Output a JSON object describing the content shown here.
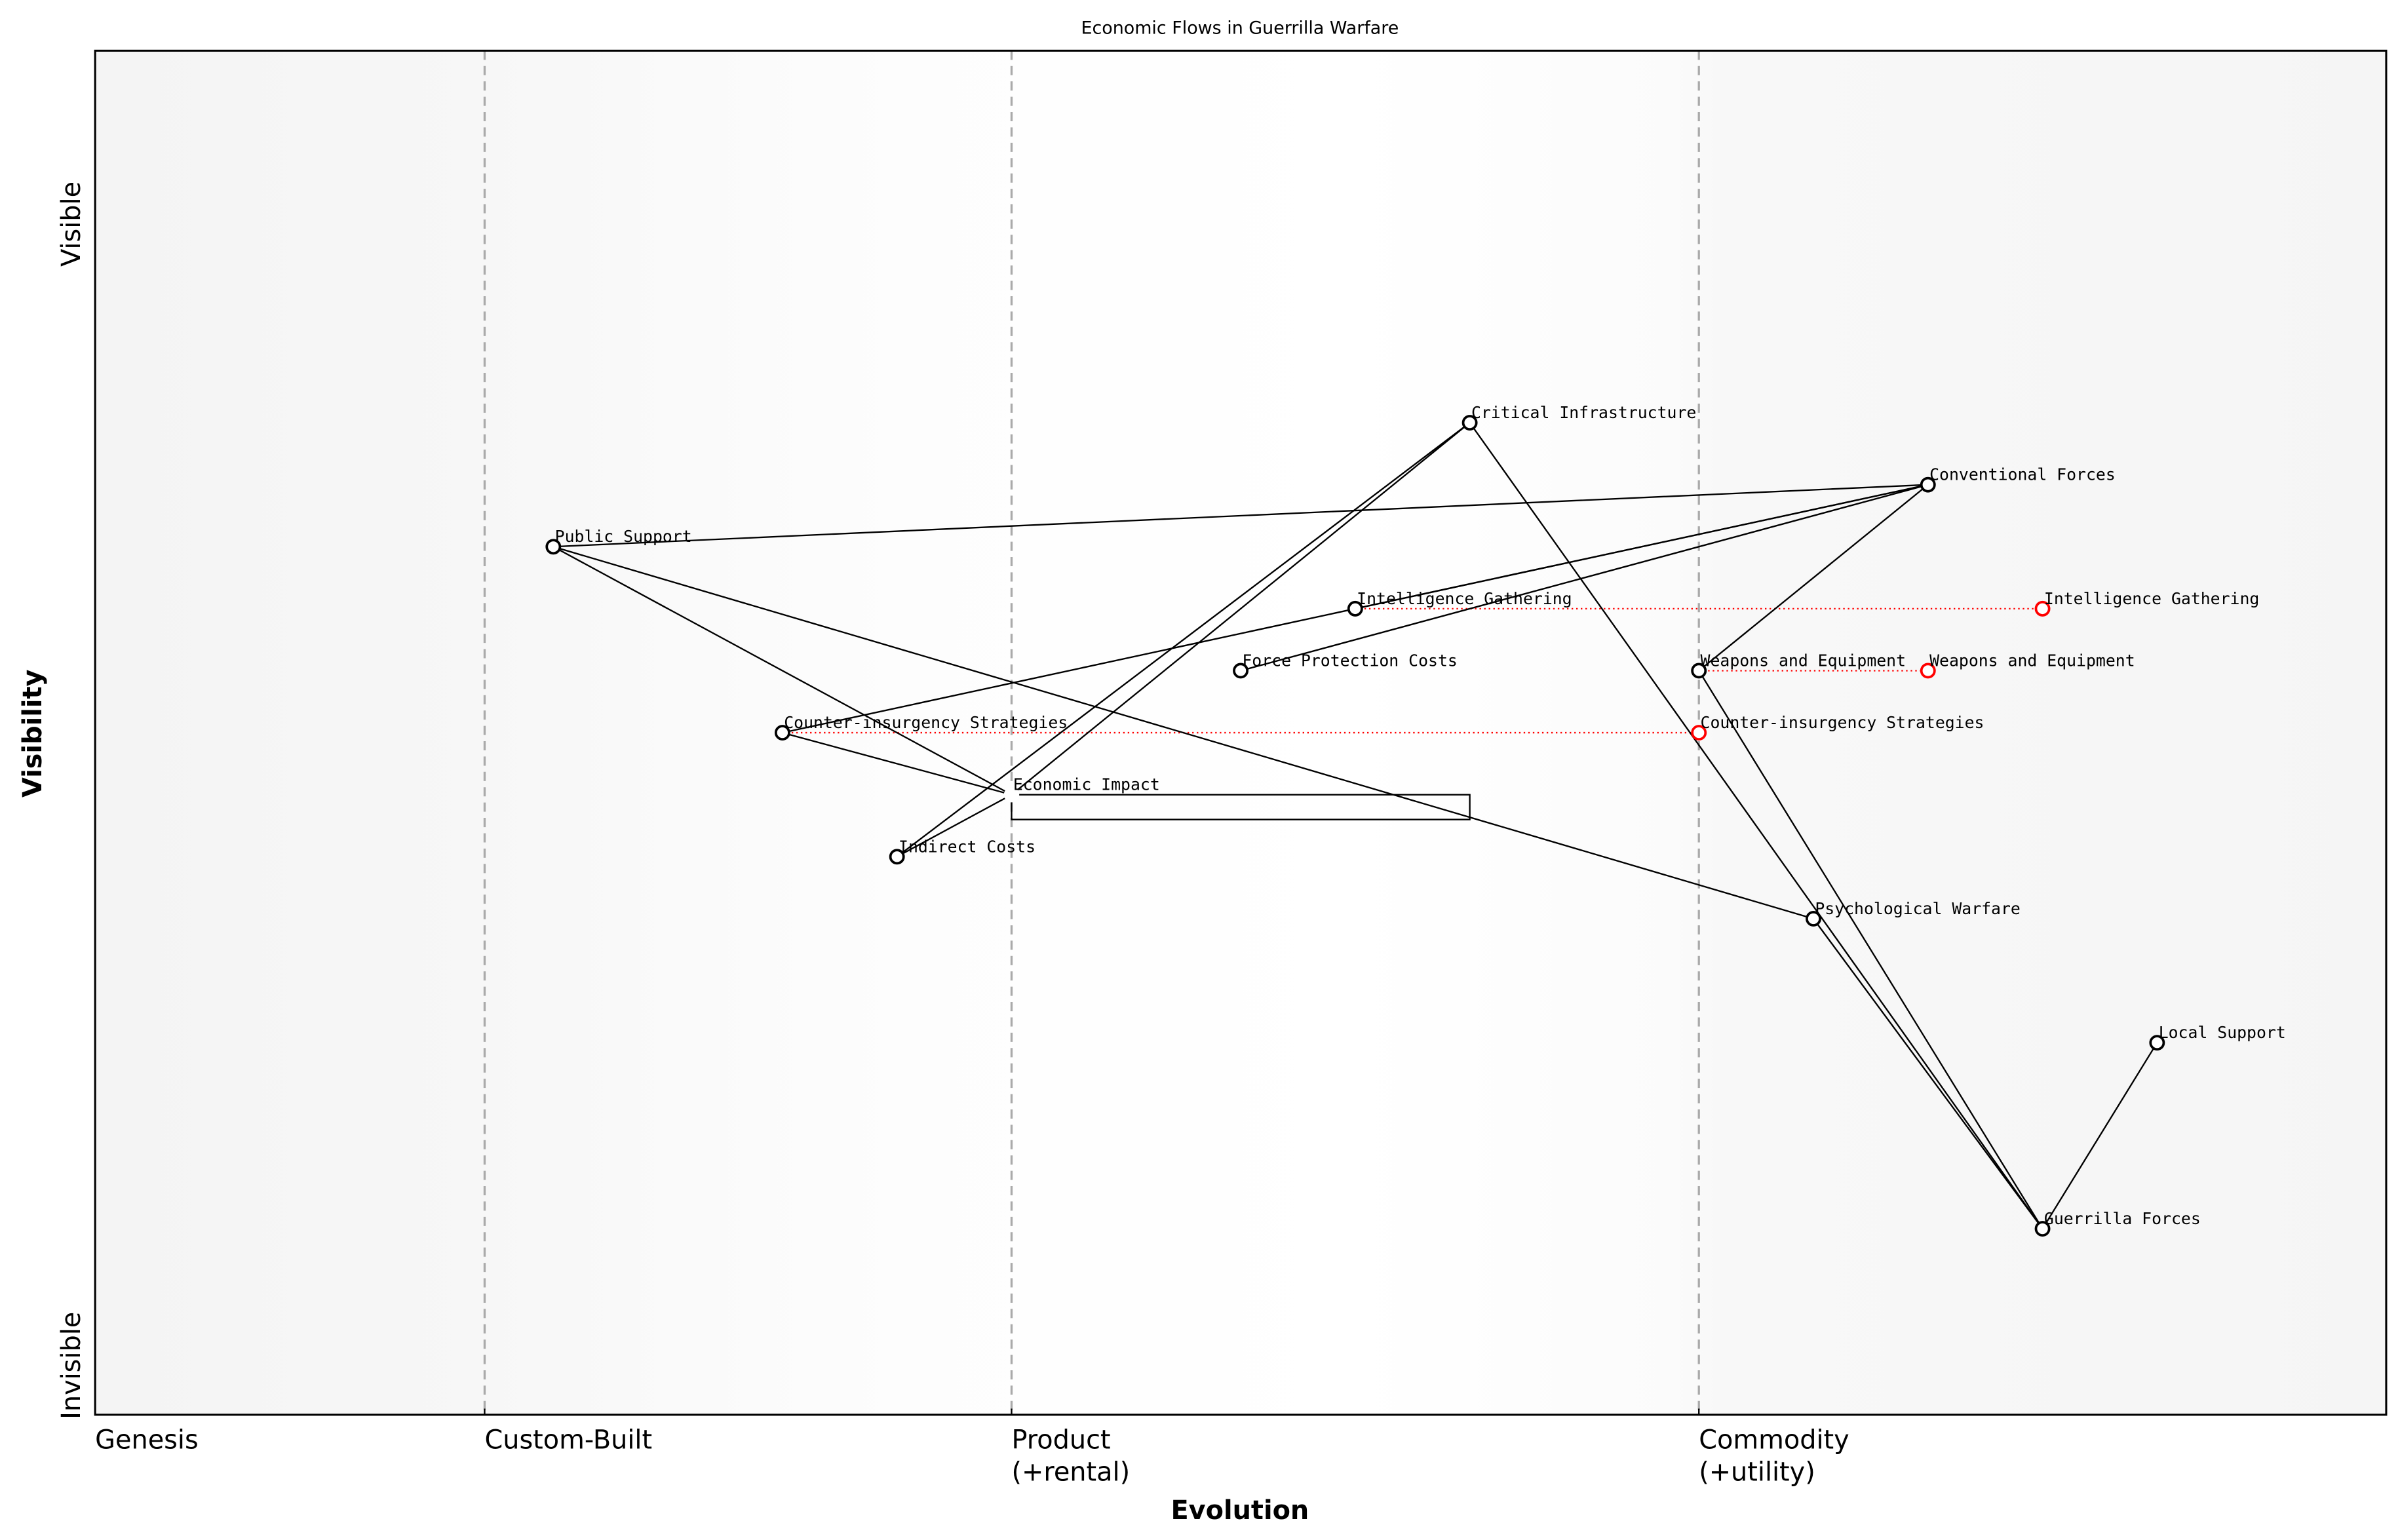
{
  "chart_data": {
    "type": "wardley-map",
    "title": "Economic Flows in Guerrilla Warfare",
    "xlabel": "Evolution",
    "ylabel": "Visibility",
    "xlim": [
      0,
      1
    ],
    "ylim": [
      -0.05,
      1.05
    ],
    "y_axis_labels": {
      "top": "Visible",
      "bottom": "Invisible"
    },
    "stages": [
      {
        "label": "Genesis",
        "x": 0.0,
        "line": false
      },
      {
        "label": "Custom-Built",
        "x": 0.17,
        "line": true
      },
      {
        "label": "Product\n(+rental)",
        "line1": "Product",
        "line2": "(+rental)",
        "x": 0.4,
        "line": true
      },
      {
        "label": "Commodity\n(+utility)",
        "line1": "Commodity",
        "line2": "(+utility)",
        "x": 0.7,
        "line": true
      }
    ],
    "components": [
      {
        "name": "Critical Infrastructure",
        "x": 0.6,
        "y": 0.75
      },
      {
        "name": "Conventional Forces",
        "x": 0.8,
        "y": 0.7
      },
      {
        "name": "Public Support",
        "x": 0.2,
        "y": 0.65
      },
      {
        "name": "Intelligence Gathering",
        "x": 0.55,
        "y": 0.6
      },
      {
        "name": "Force Protection Costs",
        "x": 0.5,
        "y": 0.55
      },
      {
        "name": "Weapons and Equipment",
        "x": 0.7,
        "y": 0.55
      },
      {
        "name": "Counter-insurgency Strategies",
        "x": 0.3,
        "y": 0.5
      },
      {
        "name": "Economic Impact",
        "x": 0.4,
        "y": 0.45,
        "marker": false
      },
      {
        "name": "Indirect Costs",
        "x": 0.35,
        "y": 0.4
      },
      {
        "name": "Psychological Warfare",
        "x": 0.75,
        "y": 0.35
      },
      {
        "name": "Local Support",
        "x": 0.9,
        "y": 0.25
      },
      {
        "name": "Guerrilla Forces",
        "x": 0.85,
        "y": 0.1
      }
    ],
    "evolutions": [
      {
        "name": "Intelligence Gathering",
        "from_x": 0.55,
        "to_x": 0.85,
        "y": 0.6
      },
      {
        "name": "Weapons and Equipment",
        "from_x": 0.7,
        "to_x": 0.8,
        "y": 0.55
      },
      {
        "name": "Counter-insurgency Strategies",
        "from_x": 0.3,
        "to_x": 0.7,
        "y": 0.5
      }
    ],
    "links": [
      [
        "Public Support",
        "Conventional Forces"
      ],
      [
        "Public Support",
        "Economic Impact"
      ],
      [
        "Public Support",
        "Psychological Warfare"
      ],
      [
        "Counter-insurgency Strategies",
        "Conventional Forces"
      ],
      [
        "Intelligence Gathering",
        "Conventional Forces"
      ],
      [
        "Force Protection Costs",
        "Conventional Forces"
      ],
      [
        "Weapons and Equipment",
        "Conventional Forces"
      ],
      [
        "Counter-insurgency Strategies",
        "Economic Impact"
      ],
      [
        "Indirect Costs",
        "Economic Impact"
      ],
      [
        "Indirect Costs",
        "Critical Infrastructure"
      ],
      [
        "Economic Impact",
        "Critical Infrastructure"
      ],
      [
        "Critical Infrastructure",
        "Guerrilla Forces"
      ],
      [
        "Weapons and Equipment",
        "Guerrilla Forces"
      ],
      [
        "Psychological Warfare",
        "Guerrilla Forces"
      ],
      [
        "Local Support",
        "Guerrilla Forces"
      ]
    ],
    "pipelines": [
      {
        "component": "Economic Impact",
        "x_start": 0.4,
        "x_end": 0.6,
        "y_top": 0.45,
        "y_bottom": 0.43
      }
    ],
    "colors": {
      "component": "#000000",
      "evolved": "#ff0000",
      "stage_line": "#aaaaaa",
      "background_edge": "#f5f5f5",
      "background_mid": "#ffffff"
    },
    "grid": false
  }
}
